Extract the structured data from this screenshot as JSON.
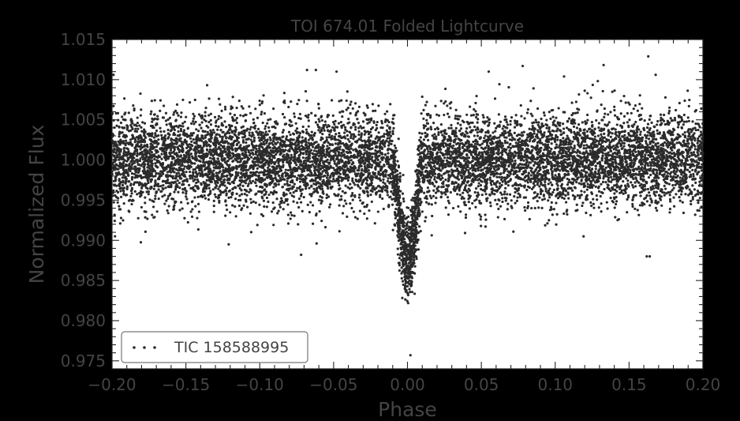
{
  "chart_data": {
    "type": "scatter",
    "title": "TOI 674.01 Folded Lightcurve",
    "xlabel": "Phase",
    "ylabel": "Normalized Flux",
    "xlim": [
      -0.2,
      0.2
    ],
    "ylim": [
      0.974,
      1.015
    ],
    "xticks": [
      "−0.20",
      "−0.15",
      "−0.10",
      "−0.05",
      "0.00",
      "0.05",
      "0.10",
      "0.15",
      "0.20"
    ],
    "yticks": [
      "0.975",
      "0.980",
      "0.985",
      "0.990",
      "0.995",
      "1.000",
      "1.005",
      "1.010",
      "1.015"
    ],
    "legend": {
      "label": "TIC 158588995",
      "placement": "lower-left"
    },
    "grid": false,
    "series": [
      {
        "name": "TIC 158588995",
        "marker_color": "#2b2b2b",
        "model": {
          "baseline_flux": 1.0,
          "baseline_scatter": 0.0028,
          "transit_center_phase": 0.0,
          "transit_half_width_phase": 0.0095,
          "transit_depth": 0.0125,
          "in_transit_scatter": 0.0028,
          "point_count": 9000
        },
        "outliers": [
          {
            "x": -0.068,
            "y": 1.0112
          },
          {
            "x": -0.062,
            "y": 1.0112
          },
          {
            "x": -0.048,
            "y": 1.011
          },
          {
            "x": 0.055,
            "y": 1.011
          },
          {
            "x": 0.078,
            "y": 1.0117
          },
          {
            "x": 0.106,
            "y": 1.0104
          },
          {
            "x": 0.163,
            "y": 1.0129
          },
          {
            "x": 0.168,
            "y": 1.0106
          },
          {
            "x": -0.199,
            "y": 1.0106
          },
          {
            "x": -0.072,
            "y": 0.9882
          },
          {
            "x": 0.164,
            "y": 0.988
          },
          {
            "x": 0.162,
            "y": 0.988
          },
          {
            "x": 0.002,
            "y": 0.9757
          },
          {
            "x": -0.121,
            "y": 0.9895
          },
          {
            "x": -0.198,
            "y": 0.9905
          }
        ]
      }
    ]
  }
}
